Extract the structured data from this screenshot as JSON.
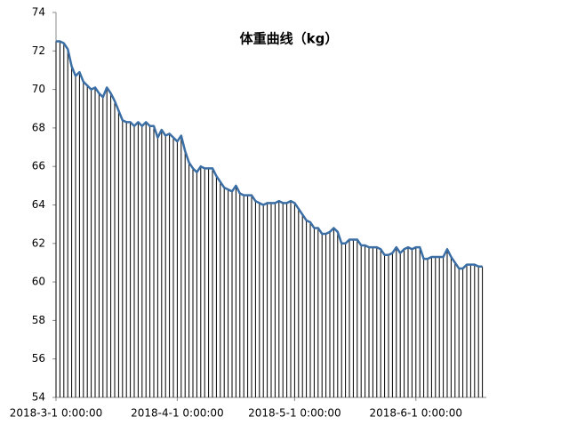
{
  "chart_data": {
    "type": "line",
    "title": "体重曲线（kg）",
    "x": [
      "2018-3-1",
      "2018-3-2",
      "2018-3-3",
      "2018-3-4",
      "2018-3-5",
      "2018-3-6",
      "2018-3-7",
      "2018-3-8",
      "2018-3-9",
      "2018-3-10",
      "2018-3-11",
      "2018-3-12",
      "2018-3-13",
      "2018-3-14",
      "2018-3-15",
      "2018-3-16",
      "2018-3-17",
      "2018-3-18",
      "2018-3-19",
      "2018-3-20",
      "2018-3-21",
      "2018-3-22",
      "2018-3-23",
      "2018-3-24",
      "2018-3-25",
      "2018-3-26",
      "2018-3-27",
      "2018-3-28",
      "2018-3-29",
      "2018-3-30",
      "2018-3-31",
      "2018-4-1",
      "2018-4-2",
      "2018-4-3",
      "2018-4-4",
      "2018-4-5",
      "2018-4-6",
      "2018-4-7",
      "2018-4-8",
      "2018-4-9",
      "2018-4-10",
      "2018-4-11",
      "2018-4-12",
      "2018-4-13",
      "2018-4-14",
      "2018-4-15",
      "2018-4-16",
      "2018-4-17",
      "2018-4-18",
      "2018-4-19",
      "2018-4-20",
      "2018-4-21",
      "2018-4-22",
      "2018-4-23",
      "2018-4-24",
      "2018-4-25",
      "2018-4-26",
      "2018-4-27",
      "2018-4-28",
      "2018-4-29",
      "2018-4-30",
      "2018-5-1",
      "2018-5-2",
      "2018-5-3",
      "2018-5-4",
      "2018-5-5",
      "2018-5-6",
      "2018-5-7",
      "2018-5-8",
      "2018-5-9",
      "2018-5-10",
      "2018-5-11",
      "2018-5-12",
      "2018-5-13",
      "2018-5-14",
      "2018-5-15",
      "2018-5-16",
      "2018-5-17",
      "2018-5-18",
      "2018-5-19",
      "2018-5-20",
      "2018-5-21",
      "2018-5-22",
      "2018-5-23",
      "2018-5-24",
      "2018-5-25",
      "2018-5-26",
      "2018-5-27",
      "2018-5-28",
      "2018-5-29",
      "2018-5-30",
      "2018-5-31",
      "2018-6-1",
      "2018-6-2",
      "2018-6-3",
      "2018-6-4",
      "2018-6-5",
      "2018-6-6",
      "2018-6-7",
      "2018-6-8",
      "2018-6-9",
      "2018-6-10",
      "2018-6-11",
      "2018-6-12",
      "2018-6-13",
      "2018-6-14",
      "2018-6-15",
      "2018-6-16",
      "2018-6-17",
      "2018-6-18"
    ],
    "series": [
      {
        "color": "#3a6ea5",
        "values": [
          72.5,
          72.5,
          72.4,
          72.1,
          71.2,
          70.7,
          70.9,
          70.4,
          70.2,
          70.0,
          70.1,
          69.8,
          69.6,
          70.1,
          69.8,
          69.4,
          68.9,
          68.4,
          68.3,
          68.3,
          68.1,
          68.3,
          68.1,
          68.3,
          68.1,
          68.1,
          67.5,
          67.9,
          67.6,
          67.7,
          67.5,
          67.3,
          67.6,
          66.8,
          66.2,
          65.9,
          65.7,
          66.0,
          65.9,
          65.9,
          65.9,
          65.5,
          65.2,
          64.9,
          64.8,
          64.7,
          65.0,
          64.6,
          64.5,
          64.5,
          64.5,
          64.2,
          64.1,
          64.0,
          64.1,
          64.1,
          64.1,
          64.2,
          64.1,
          64.1,
          64.2,
          64.1,
          63.8,
          63.5,
          63.2,
          63.1,
          62.8,
          62.8,
          62.5,
          62.5,
          62.6,
          62.8,
          62.6,
          62.0,
          62.0,
          62.2,
          62.2,
          62.2,
          61.9,
          61.9,
          61.8,
          61.8,
          61.8,
          61.7,
          61.4,
          61.4,
          61.5,
          61.8,
          61.5,
          61.7,
          61.8,
          61.7,
          61.8,
          61.8,
          61.2,
          61.2,
          61.3,
          61.3,
          61.3,
          61.3,
          61.7,
          61.3,
          61.0,
          60.7,
          60.7,
          60.9,
          60.9,
          60.9,
          60.8,
          60.8
        ]
      }
    ],
    "drop_lines": true,
    "xlim": [
      "2018-3-1",
      "2018-6-19"
    ],
    "xticks": [
      {
        "value": "2018-3-1",
        "label": "2018-3-1 0:00:00"
      },
      {
        "value": "2018-4-1",
        "label": "2018-4-1 0:00:00"
      },
      {
        "value": "2018-5-1",
        "label": "2018-5-1 0:00:00"
      },
      {
        "value": "2018-6-1",
        "label": "2018-6-1 0:00:00"
      }
    ],
    "ylim": [
      54,
      74
    ],
    "yticks": [
      54,
      56,
      58,
      60,
      62,
      64,
      66,
      68,
      70,
      72,
      74
    ],
    "grid": false
  }
}
